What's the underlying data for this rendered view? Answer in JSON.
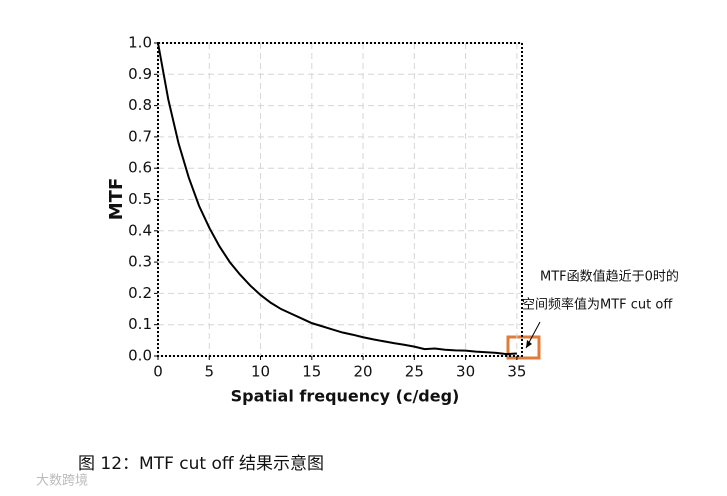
{
  "chart_data": {
    "type": "line",
    "x_label": "Spatial frequency (c/deg)",
    "y_label": "MTF",
    "x": [
      0,
      1,
      2,
      3,
      4,
      5,
      6,
      7,
      8,
      9,
      10,
      11,
      12,
      13,
      14,
      15,
      16,
      17,
      18,
      19,
      20,
      21,
      22,
      23,
      24,
      25,
      26,
      27,
      28,
      29,
      30,
      31,
      32,
      33,
      34,
      35
    ],
    "series": [
      {
        "color": "#000000",
        "values": [
          1.0,
          0.82,
          0.68,
          0.57,
          0.48,
          0.41,
          0.35,
          0.3,
          0.26,
          0.225,
          0.195,
          0.17,
          0.15,
          0.135,
          0.12,
          0.105,
          0.095,
          0.085,
          0.075,
          0.068,
          0.06,
          0.053,
          0.047,
          0.041,
          0.036,
          0.03,
          0.022,
          0.024,
          0.02,
          0.018,
          0.017,
          0.014,
          0.012,
          0.01,
          0.006,
          0.008
        ]
      }
    ],
    "xlim": [
      0,
      35.5
    ],
    "ylim": [
      0,
      1
    ],
    "xticks": [
      0,
      5,
      10,
      15,
      20,
      25,
      30,
      35
    ],
    "yticks": [
      {
        "value": 0,
        "label": "0.0"
      },
      0.1,
      0.2,
      0.3,
      0.4,
      0.5,
      0.6,
      0.7,
      0.8,
      0.9,
      {
        "value": 1,
        "label": "1.0"
      }
    ],
    "grid": true,
    "annotations": [
      "MTF函数值趋近于0时的",
      "空间频率值为MTF cut off"
    ]
  },
  "caption": "图 12：MTF cut off 结果示意图",
  "watermark": "大数跨境"
}
